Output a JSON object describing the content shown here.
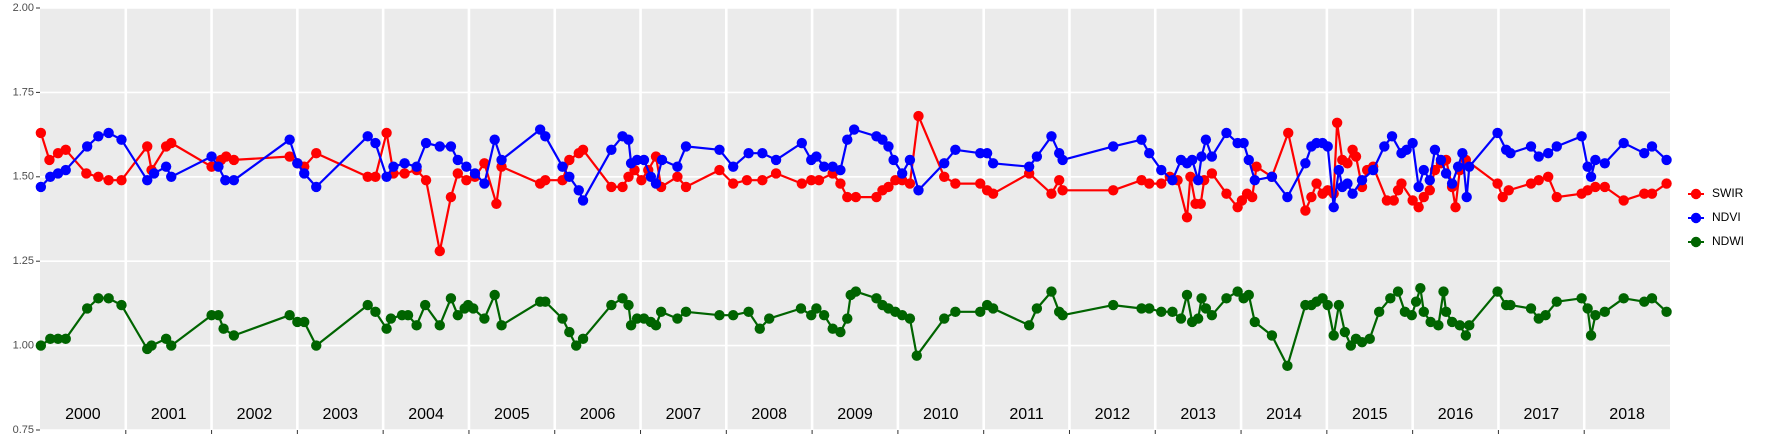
{
  "chart_data": {
    "type": "line",
    "xlim": [
      2000,
      2019
    ],
    "ylim": [
      0.75,
      2.0
    ],
    "yticks": [
      0.75,
      {
        "value": 1.0,
        "label": "1.00"
      },
      1.25,
      {
        "value": 1.5,
        "label": "1.50"
      },
      1.75,
      {
        "value": 2.0,
        "label": "2.00"
      }
    ],
    "xticks": [
      {
        "value": 2000.5,
        "label": "2000"
      },
      {
        "value": 2001.5,
        "label": "2001"
      },
      {
        "value": 2002.5,
        "label": "2002"
      },
      {
        "value": 2003.5,
        "label": "2003"
      },
      {
        "value": 2004.5,
        "label": "2004"
      },
      {
        "value": 2005.5,
        "label": "2005"
      },
      {
        "value": 2006.5,
        "label": "2006"
      },
      {
        "value": 2007.5,
        "label": "2007"
      },
      {
        "value": 2008.5,
        "label": "2008"
      },
      {
        "value": 2009.5,
        "label": "2009"
      },
      {
        "value": 2010.5,
        "label": "2010"
      },
      {
        "value": 2011.5,
        "label": "2011"
      },
      {
        "value": 2012.5,
        "label": "2012"
      },
      {
        "value": 2013.5,
        "label": "2013"
      },
      {
        "value": 2014.5,
        "label": "2014"
      },
      {
        "value": 2015.5,
        "label": "2015"
      },
      {
        "value": 2016.5,
        "label": "2016"
      },
      {
        "value": 2017.5,
        "label": "2017"
      },
      {
        "value": 2018.5,
        "label": "2018"
      }
    ],
    "xgrid": [
      2001,
      2002,
      2003,
      2004,
      2005,
      2006,
      2007,
      2008,
      2009,
      2010,
      2011,
      2012,
      2013,
      2014,
      2015,
      2016,
      2017,
      2018
    ],
    "grid": true,
    "legend_position": "right",
    "series": [
      {
        "name": "SWIR",
        "color": "#ff0000",
        "x": [
          2000.01,
          2000.11,
          2000.21,
          2000.3,
          2000.54,
          2000.68,
          2000.8,
          2000.95,
          2001.25,
          2001.3,
          2001.47,
          2001.53,
          2002.0,
          2002.11,
          2002.17,
          2002.26,
          2002.91,
          2003.0,
          2003.08,
          2003.22,
          2003.82,
          2003.91,
          2004.04,
          2004.12,
          2004.25,
          2004.39,
          2004.5,
          2004.66,
          2004.79,
          2004.87,
          2004.97,
          2005.07,
          2005.18,
          2005.32,
          2005.38,
          2005.83,
          2005.89,
          2006.09,
          2006.17,
          2006.28,
          2006.33,
          2006.66,
          2006.79,
          2006.86,
          2006.93,
          2007.01,
          2007.09,
          2007.18,
          2007.24,
          2007.43,
          2007.53,
          2007.92,
          2008.08,
          2008.24,
          2008.42,
          2008.58,
          2008.88,
          2008.99,
          2009.08,
          2009.24,
          2009.33,
          2009.41,
          2009.51,
          2009.75,
          2009.82,
          2009.89,
          2009.97,
          2010.05,
          2010.14,
          2010.24,
          2010.54,
          2010.67,
          2010.96,
          2011.04,
          2011.11,
          2011.53,
          2011.79,
          2011.88,
          2011.92,
          2012.51,
          2012.84,
          2012.93,
          2013.07,
          2013.17,
          2013.26,
          2013.37,
          2013.41,
          2013.47,
          2013.53,
          2013.57,
          2013.66,
          2013.83,
          2013.96,
          2014.01,
          2014.07,
          2014.13,
          2014.18,
          2014.36,
          2014.55,
          2014.75,
          2014.82,
          2014.88,
          2014.95,
          2015.01,
          2015.08,
          2015.12,
          2015.18,
          2015.24,
          2015.3,
          2015.34,
          2015.41,
          2015.47,
          2015.54,
          2015.7,
          2015.78,
          2015.83,
          2015.87,
          2016.0,
          2016.07,
          2016.13,
          2016.2,
          2016.26,
          2016.33,
          2016.39,
          2016.46,
          2016.5,
          2016.55,
          2016.62,
          2016.99,
          2017.05,
          2017.12,
          2017.38,
          2017.47,
          2017.58,
          2017.68,
          2017.97,
          2018.04,
          2018.13,
          2018.24,
          2018.46,
          2018.7,
          2018.79,
          2018.96
        ],
        "values": [
          1.63,
          1.55,
          1.57,
          1.58,
          1.51,
          1.5,
          1.49,
          1.49,
          1.59,
          1.52,
          1.59,
          1.6,
          1.53,
          1.55,
          1.56,
          1.55,
          1.56,
          1.54,
          1.53,
          1.57,
          1.5,
          1.5,
          1.63,
          1.51,
          1.51,
          1.52,
          1.49,
          1.28,
          1.44,
          1.51,
          1.49,
          1.5,
          1.54,
          1.42,
          1.53,
          1.48,
          1.49,
          1.49,
          1.55,
          1.57,
          1.58,
          1.47,
          1.47,
          1.5,
          1.52,
          1.49,
          1.52,
          1.56,
          1.47,
          1.5,
          1.47,
          1.52,
          1.48,
          1.49,
          1.49,
          1.51,
          1.48,
          1.49,
          1.49,
          1.51,
          1.48,
          1.44,
          1.44,
          1.44,
          1.46,
          1.47,
          1.49,
          1.49,
          1.48,
          1.68,
          1.5,
          1.48,
          1.48,
          1.46,
          1.45,
          1.51,
          1.45,
          1.49,
          1.46,
          1.46,
          1.49,
          1.48,
          1.48,
          1.5,
          1.49,
          1.38,
          1.5,
          1.42,
          1.42,
          1.49,
          1.51,
          1.45,
          1.41,
          1.43,
          1.45,
          1.44,
          1.53,
          1.5,
          1.63,
          1.4,
          1.44,
          1.48,
          1.45,
          1.46,
          1.45,
          1.66,
          1.55,
          1.54,
          1.58,
          1.56,
          1.47,
          1.52,
          1.53,
          1.43,
          1.43,
          1.46,
          1.48,
          1.43,
          1.41,
          1.44,
          1.46,
          1.52,
          1.54,
          1.55,
          1.47,
          1.41,
          1.52,
          1.55,
          1.48,
          1.44,
          1.46,
          1.48,
          1.49,
          1.5,
          1.44,
          1.45,
          1.46,
          1.47,
          1.47,
          1.43,
          1.45,
          1.45,
          1.48
        ]
      },
      {
        "name": "NDVI",
        "color": "#0000ff",
        "x": [
          2000.01,
          2000.12,
          2000.21,
          2000.3,
          2000.55,
          2000.68,
          2000.8,
          2000.95,
          2001.25,
          2001.33,
          2001.47,
          2001.53,
          2002.0,
          2002.08,
          2002.16,
          2002.26,
          2002.91,
          2003.0,
          2003.08,
          2003.22,
          2003.82,
          2003.91,
          2004.04,
          2004.12,
          2004.25,
          2004.39,
          2004.5,
          2004.66,
          2004.79,
          2004.87,
          2004.97,
          2005.07,
          2005.18,
          2005.3,
          2005.38,
          2005.83,
          2005.89,
          2006.09,
          2006.17,
          2006.28,
          2006.33,
          2006.66,
          2006.79,
          2006.86,
          2006.89,
          2006.96,
          2007.04,
          2007.12,
          2007.18,
          2007.25,
          2007.43,
          2007.53,
          2007.92,
          2008.08,
          2008.26,
          2008.42,
          2008.58,
          2008.88,
          2008.99,
          2009.05,
          2009.14,
          2009.24,
          2009.33,
          2009.41,
          2009.49,
          2009.75,
          2009.82,
          2009.89,
          2009.95,
          2010.05,
          2010.14,
          2010.24,
          2010.54,
          2010.67,
          2010.96,
          2011.04,
          2011.11,
          2011.53,
          2011.62,
          2011.79,
          2011.88,
          2011.92,
          2012.51,
          2012.84,
          2012.93,
          2013.07,
          2013.2,
          2013.3,
          2013.37,
          2013.43,
          2013.5,
          2013.54,
          2013.59,
          2013.66,
          2013.83,
          2013.96,
          2014.03,
          2014.09,
          2014.16,
          2014.36,
          2014.54,
          2014.75,
          2014.82,
          2014.88,
          2014.95,
          2015.01,
          2015.08,
          2015.14,
          2015.18,
          2015.24,
          2015.3,
          2015.41,
          2015.54,
          2015.67,
          2015.76,
          2015.87,
          2015.93,
          2016.0,
          2016.07,
          2016.13,
          2016.2,
          2016.26,
          2016.33,
          2016.39,
          2016.46,
          2016.53,
          2016.58,
          2016.63,
          2016.66,
          2016.99,
          2017.09,
          2017.14,
          2017.38,
          2017.47,
          2017.58,
          2017.68,
          2017.97,
          2018.04,
          2018.08,
          2018.13,
          2018.24,
          2018.46,
          2018.7,
          2018.79,
          2018.96
        ],
        "values": [
          1.47,
          1.5,
          1.51,
          1.52,
          1.59,
          1.62,
          1.63,
          1.61,
          1.49,
          1.51,
          1.53,
          1.5,
          1.56,
          1.53,
          1.49,
          1.49,
          1.61,
          1.54,
          1.51,
          1.47,
          1.62,
          1.6,
          1.5,
          1.53,
          1.54,
          1.53,
          1.6,
          1.59,
          1.59,
          1.55,
          1.53,
          1.51,
          1.48,
          1.61,
          1.55,
          1.64,
          1.62,
          1.53,
          1.5,
          1.46,
          1.43,
          1.58,
          1.62,
          1.61,
          1.54,
          1.55,
          1.55,
          1.5,
          1.48,
          1.55,
          1.53,
          1.59,
          1.58,
          1.53,
          1.57,
          1.57,
          1.55,
          1.6,
          1.55,
          1.56,
          1.53,
          1.53,
          1.52,
          1.61,
          1.64,
          1.62,
          1.61,
          1.59,
          1.55,
          1.51,
          1.55,
          1.46,
          1.54,
          1.58,
          1.57,
          1.57,
          1.54,
          1.53,
          1.56,
          1.62,
          1.57,
          1.55,
          1.59,
          1.61,
          1.57,
          1.52,
          1.49,
          1.55,
          1.54,
          1.55,
          1.49,
          1.56,
          1.61,
          1.56,
          1.63,
          1.6,
          1.6,
          1.55,
          1.49,
          1.5,
          1.44,
          1.54,
          1.59,
          1.6,
          1.6,
          1.59,
          1.41,
          1.52,
          1.47,
          1.48,
          1.45,
          1.49,
          1.52,
          1.59,
          1.62,
          1.57,
          1.58,
          1.6,
          1.47,
          1.52,
          1.49,
          1.58,
          1.55,
          1.51,
          1.48,
          1.53,
          1.57,
          1.44,
          1.53,
          1.63,
          1.58,
          1.57,
          1.59,
          1.56,
          1.57,
          1.59,
          1.62,
          1.53,
          1.5,
          1.55,
          1.54,
          1.6,
          1.57,
          1.59,
          1.55
        ]
      },
      {
        "name": "NDWI",
        "color": "#006400",
        "x": [
          2000.01,
          2000.12,
          2000.21,
          2000.3,
          2000.55,
          2000.68,
          2000.8,
          2000.95,
          2001.25,
          2001.3,
          2001.47,
          2001.53,
          2002.0,
          2002.08,
          2002.14,
          2002.26,
          2002.91,
          2003.0,
          2003.08,
          2003.22,
          2003.82,
          2003.91,
          2004.04,
          2004.09,
          2004.22,
          2004.29,
          2004.39,
          2004.49,
          2004.66,
          2004.79,
          2004.87,
          2004.95,
          2004.99,
          2005.05,
          2005.18,
          2005.3,
          2005.38,
          2005.83,
          2005.89,
          2006.09,
          2006.17,
          2006.25,
          2006.33,
          2006.66,
          2006.79,
          2006.86,
          2006.89,
          2006.96,
          2007.04,
          2007.12,
          2007.18,
          2007.24,
          2007.43,
          2007.53,
          2007.92,
          2008.08,
          2008.26,
          2008.39,
          2008.5,
          2008.87,
          2008.99,
          2009.05,
          2009.14,
          2009.24,
          2009.33,
          2009.41,
          2009.45,
          2009.51,
          2009.75,
          2009.82,
          2009.89,
          2009.97,
          2010.05,
          2010.14,
          2010.22,
          2010.54,
          2010.67,
          2010.96,
          2011.04,
          2011.11,
          2011.53,
          2011.62,
          2011.79,
          2011.88,
          2011.92,
          2012.51,
          2012.84,
          2012.93,
          2013.07,
          2013.2,
          2013.3,
          2013.37,
          2013.43,
          2013.5,
          2013.54,
          2013.59,
          2013.66,
          2013.83,
          2013.96,
          2014.03,
          2014.09,
          2014.16,
          2014.36,
          2014.54,
          2014.75,
          2014.82,
          2014.88,
          2014.95,
          2015.01,
          2015.08,
          2015.14,
          2015.21,
          2015.28,
          2015.34,
          2015.41,
          2015.5,
          2015.61,
          2015.74,
          2015.83,
          2015.91,
          2015.99,
          2016.04,
          2016.09,
          2016.13,
          2016.21,
          2016.3,
          2016.36,
          2016.39,
          2016.46,
          2016.55,
          2016.62,
          2016.66,
          2016.99,
          2017.09,
          2017.14,
          2017.38,
          2017.47,
          2017.55,
          2017.68,
          2017.97,
          2018.04,
          2018.08,
          2018.13,
          2018.24,
          2018.46,
          2018.7,
          2018.79,
          2018.96
        ],
        "values": [
          1.0,
          1.02,
          1.02,
          1.02,
          1.11,
          1.14,
          1.14,
          1.12,
          0.99,
          1.0,
          1.02,
          1.0,
          1.09,
          1.09,
          1.05,
          1.03,
          1.09,
          1.07,
          1.07,
          1.0,
          1.12,
          1.1,
          1.05,
          1.08,
          1.09,
          1.09,
          1.06,
          1.12,
          1.06,
          1.14,
          1.09,
          1.11,
          1.12,
          1.11,
          1.08,
          1.15,
          1.06,
          1.13,
          1.13,
          1.08,
          1.04,
          1.0,
          1.02,
          1.12,
          1.14,
          1.12,
          1.06,
          1.08,
          1.08,
          1.07,
          1.06,
          1.1,
          1.08,
          1.1,
          1.09,
          1.09,
          1.1,
          1.05,
          1.08,
          1.11,
          1.09,
          1.11,
          1.09,
          1.05,
          1.04,
          1.08,
          1.15,
          1.16,
          1.14,
          1.12,
          1.11,
          1.1,
          1.09,
          1.08,
          0.97,
          1.08,
          1.1,
          1.1,
          1.12,
          1.11,
          1.06,
          1.11,
          1.16,
          1.1,
          1.09,
          1.12,
          1.11,
          1.11,
          1.1,
          1.1,
          1.08,
          1.15,
          1.07,
          1.08,
          1.14,
          1.11,
          1.09,
          1.14,
          1.16,
          1.14,
          1.15,
          1.07,
          1.03,
          0.94,
          1.12,
          1.12,
          1.13,
          1.14,
          1.12,
          1.03,
          1.12,
          1.04,
          1.0,
          1.02,
          1.01,
          1.02,
          1.1,
          1.14,
          1.16,
          1.1,
          1.09,
          1.13,
          1.17,
          1.1,
          1.07,
          1.06,
          1.16,
          1.1,
          1.07,
          1.06,
          1.03,
          1.06,
          1.16,
          1.12,
          1.12,
          1.11,
          1.08,
          1.09,
          1.13,
          1.14,
          1.11,
          1.03,
          1.09,
          1.1,
          1.14,
          1.13,
          1.14,
          1.1
        ]
      }
    ]
  }
}
